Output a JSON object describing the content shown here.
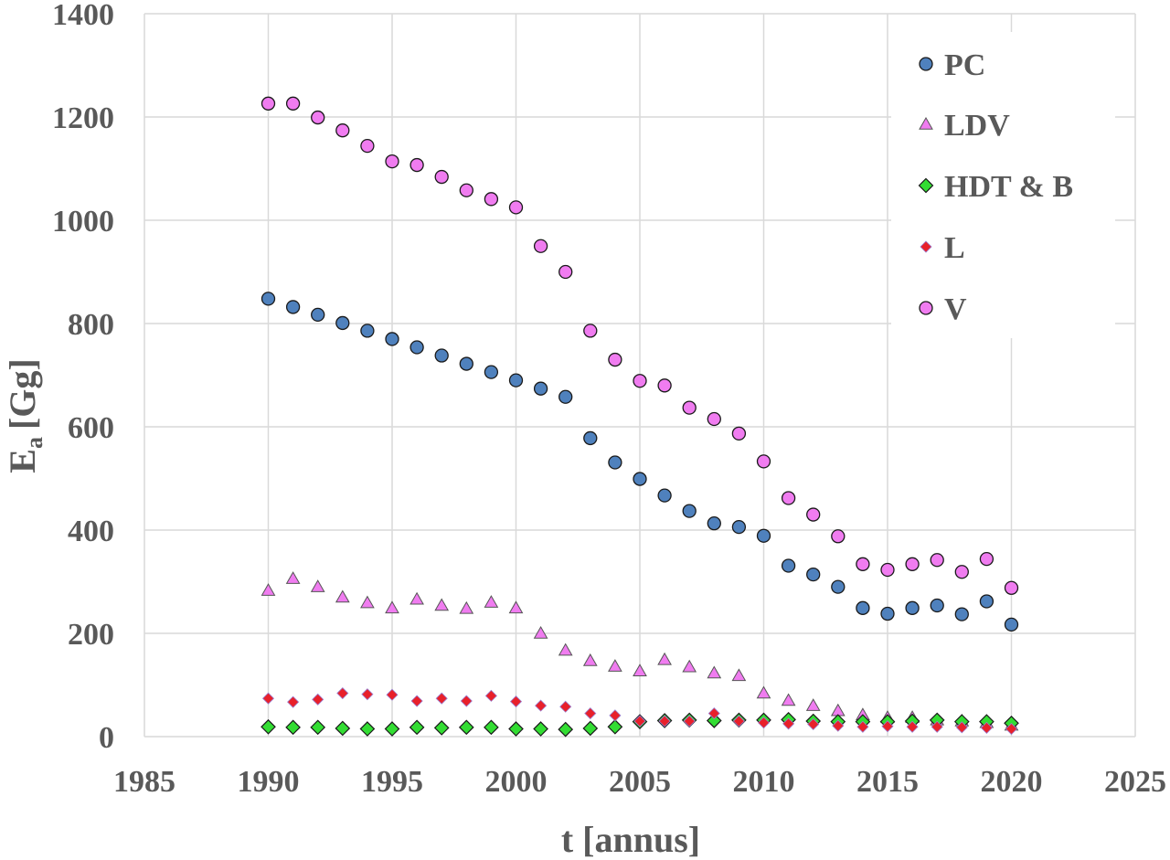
{
  "chart_data": {
    "type": "scatter",
    "title": "",
    "xlabel": "t [annus]",
    "ylabel_main": "E",
    "ylabel_sub": "a",
    "ylabel_unit": "[Gg]",
    "xlim": [
      1985,
      2025
    ],
    "ylim": [
      0,
      1400
    ],
    "xticks": [
      1985,
      1990,
      1995,
      2000,
      2005,
      2010,
      2015,
      2020,
      2025
    ],
    "yticks": [
      0,
      200,
      400,
      600,
      800,
      1000,
      1200,
      1400
    ],
    "grid": true,
    "legend_position": "top-right",
    "x": [
      1990,
      1991,
      1992,
      1993,
      1994,
      1995,
      1996,
      1997,
      1998,
      1999,
      2000,
      2001,
      2002,
      2003,
      2004,
      2005,
      2006,
      2007,
      2008,
      2009,
      2010,
      2011,
      2012,
      2013,
      2014,
      2015,
      2016,
      2017,
      2018,
      2019,
      2020
    ],
    "series": [
      {
        "name": "PC",
        "marker": "circle",
        "color": "#4f81bd",
        "values": [
          848,
          832,
          817,
          801,
          786,
          770,
          754,
          738,
          722,
          706,
          690,
          674,
          658,
          578,
          531,
          499,
          467,
          437,
          413,
          406,
          389,
          331,
          314,
          290,
          249,
          238,
          249,
          254,
          237,
          262,
          217
        ]
      },
      {
        "name": "LDV",
        "marker": "triangle",
        "color": "#f07cf0",
        "values": [
          283,
          306,
          290,
          270,
          259,
          249,
          266,
          254,
          248,
          260,
          249,
          200,
          167,
          147,
          136,
          127,
          149,
          135,
          123,
          118,
          84,
          70,
          60,
          50,
          42,
          37,
          37,
          32,
          30,
          27,
          22
        ]
      },
      {
        "name": "HDT & B",
        "marker": "diamond",
        "color": "#33dd33",
        "values": [
          19,
          18,
          18,
          16,
          15,
          15,
          18,
          17,
          18,
          18,
          15,
          15,
          14,
          16,
          19,
          29,
          31,
          32,
          31,
          32,
          32,
          33,
          30,
          29,
          29,
          29,
          30,
          32,
          29,
          29,
          26
        ]
      },
      {
        "name": "L",
        "marker": "diamond-small",
        "color": "#e8202a",
        "values": [
          74,
          67,
          72,
          84,
          82,
          81,
          69,
          74,
          69,
          79,
          68,
          60,
          58,
          45,
          41,
          30,
          30,
          30,
          45,
          30,
          27,
          25,
          24,
          21,
          19,
          20,
          19,
          19,
          18,
          17,
          15
        ]
      },
      {
        "name": "V",
        "marker": "circle",
        "color": "#f07cf0",
        "values": [
          1226,
          1226,
          1199,
          1174,
          1144,
          1114,
          1107,
          1084,
          1058,
          1041,
          1025,
          950,
          900,
          786,
          730,
          689,
          680,
          637,
          615,
          587,
          533,
          462,
          430,
          388,
          334,
          323,
          334,
          342,
          319,
          344,
          288
        ]
      }
    ]
  }
}
